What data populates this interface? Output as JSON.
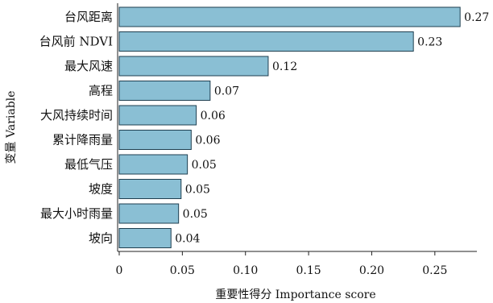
{
  "chart_data": {
    "type": "bar",
    "orientation": "horizontal",
    "categories": [
      "台风距离",
      "台风前 NDVI",
      "最大风速",
      "高程",
      "大风持续时间",
      "累计降雨量",
      "最低气压",
      "坡度",
      "最大小时雨量",
      "坡向"
    ],
    "values": [
      0.27,
      0.233,
      0.118,
      0.072,
      0.061,
      0.057,
      0.054,
      0.049,
      0.047,
      0.041
    ],
    "value_labels": [
      "0.27",
      "0.23",
      "0.12",
      "0.07",
      "0.06",
      "0.06",
      "0.05",
      "0.05",
      "0.05",
      "0.04"
    ],
    "xlabel": "重要性得分 Importance score",
    "ylabel": "变量 Variable",
    "xlim": [
      0,
      0.275
    ],
    "xticks": [
      0,
      0.05,
      0.1,
      0.15,
      0.2,
      0.25
    ],
    "xtick_labels": [
      "0",
      "0.05",
      "0.10",
      "0.15",
      "0.20",
      "0.25"
    ],
    "grid": false,
    "colors": {
      "bar_fill": "#8abfd4",
      "bar_edge": "#1f3f50"
    }
  }
}
